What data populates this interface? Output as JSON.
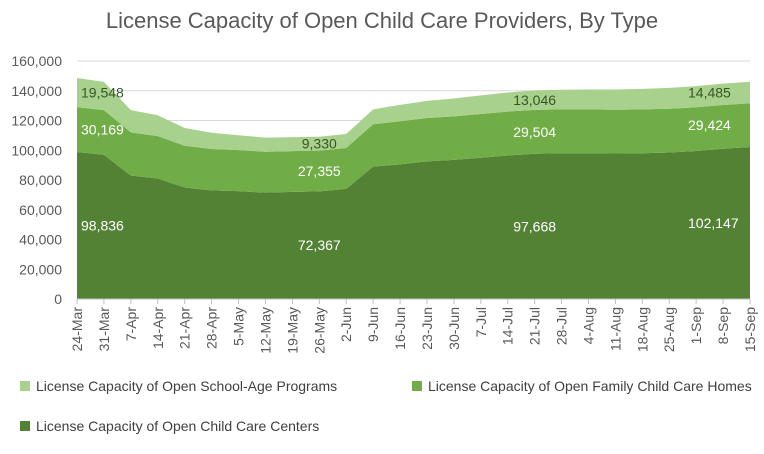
{
  "chart_data": {
    "type": "area",
    "stacked": true,
    "title": "License Capacity of Open Child Care Providers, By Type",
    "xlabel": "",
    "ylabel": "",
    "ylim": [
      0,
      160000
    ],
    "yticks": [
      0,
      20000,
      40000,
      60000,
      80000,
      100000,
      120000,
      140000,
      160000
    ],
    "ytick_labels": [
      "0",
      "20,000",
      "40,000",
      "60,000",
      "80,000",
      "100,000",
      "120,000",
      "140,000",
      "160,000"
    ],
    "xtick_labels": [
      "24-Mar",
      "31-Mar",
      "7-Apr",
      "14-Apr",
      "21-Apr",
      "28-Apr",
      "5-May",
      "12-May",
      "19-May",
      "26-May",
      "2-Jun",
      "9-Jun",
      "16-Jun",
      "23-Jun",
      "30-Jun",
      "7-Jul",
      "14-Jul",
      "21-Jul",
      "28-Jul",
      "4-Aug",
      "11-Aug",
      "18-Aug",
      "25-Aug",
      "1-Sep",
      "8-Sep",
      "15-Sep"
    ],
    "grid": true,
    "legend_position": "bottom",
    "series": [
      {
        "name": "License Capacity of Open Child Care Centers",
        "color": "#548235",
        "values": [
          98836,
          97000,
          83000,
          81000,
          75000,
          73000,
          72500,
          71500,
          72000,
          72367,
          74000,
          89000,
          90500,
          92500,
          93500,
          95000,
          96500,
          97668,
          98000,
          98000,
          97800,
          98000,
          98500,
          99500,
          101000,
          102147
        ]
      },
      {
        "name": "License Capacity of Open Family Child Care Homes",
        "color": "#70AD47",
        "values": [
          30169,
          30000,
          29000,
          28500,
          28000,
          27800,
          27600,
          27500,
          27400,
          27355,
          27500,
          28500,
          29000,
          29200,
          29300,
          29400,
          29500,
          29504,
          29500,
          29480,
          29460,
          29450,
          29440,
          29430,
          29430,
          29424
        ]
      },
      {
        "name": "License Capacity of Open School-Age Programs",
        "color": "#A9D18E",
        "values": [
          19548,
          19000,
          15000,
          14000,
          12000,
          11000,
          10000,
          9500,
          9400,
          9330,
          9400,
          10000,
          11000,
          11500,
          12000,
          12500,
          12800,
          13046,
          13200,
          13400,
          13600,
          13800,
          14000,
          14200,
          14350,
          14485
        ]
      }
    ],
    "data_labels": [
      {
        "series": 2,
        "index": 0,
        "text": "19,548"
      },
      {
        "series": 1,
        "index": 0,
        "text": "30,169"
      },
      {
        "series": 0,
        "index": 0,
        "text": "98,836"
      },
      {
        "series": 2,
        "index": 9,
        "text": "9,330"
      },
      {
        "series": 1,
        "index": 9,
        "text": "27,355"
      },
      {
        "series": 0,
        "index": 9,
        "text": "72,367"
      },
      {
        "series": 2,
        "index": 17,
        "text": "13,046"
      },
      {
        "series": 1,
        "index": 17,
        "text": "29,504"
      },
      {
        "series": 0,
        "index": 17,
        "text": "97,668"
      },
      {
        "series": 2,
        "index": 25,
        "text": "14,485"
      },
      {
        "series": 1,
        "index": 25,
        "text": "29,424"
      },
      {
        "series": 0,
        "index": 25,
        "text": "102,147"
      }
    ]
  }
}
